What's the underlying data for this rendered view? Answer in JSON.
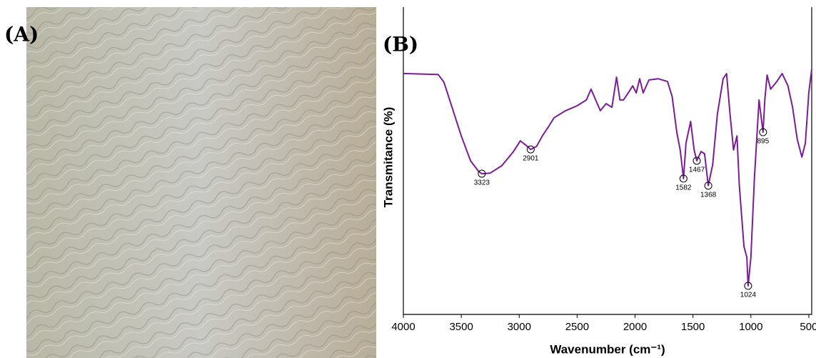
{
  "photo": {
    "label": "(A)"
  },
  "chart_data": {
    "type": "line",
    "panel_label": "(B)",
    "xlabel": "Wavenumber (cm⁻¹)",
    "ylabel": "Transmitance (%)",
    "color": "#7a1d96",
    "xlim": [
      4000,
      475
    ],
    "ylim": [
      0,
      100
    ],
    "xticks": [
      4000,
      3500,
      3000,
      2500,
      2000,
      1500,
      1000,
      500
    ],
    "x": [
      4000,
      3700,
      3650,
      3600,
      3500,
      3420,
      3350,
      3323,
      3250,
      3150,
      3050,
      2990,
      2930,
      2901,
      2850,
      2800,
      2750,
      2700,
      2600,
      2500,
      2420,
      2380,
      2340,
      2300,
      2250,
      2200,
      2160,
      2130,
      2100,
      2050,
      2020,
      1990,
      1960,
      1930,
      1880,
      1800,
      1720,
      1680,
      1640,
      1610,
      1582,
      1560,
      1520,
      1490,
      1467,
      1430,
      1400,
      1368,
      1330,
      1290,
      1240,
      1210,
      1180,
      1150,
      1120,
      1100,
      1060,
      1035,
      1024,
      1000,
      970,
      930,
      895,
      880,
      860,
      830,
      780,
      730,
      680,
      640,
      600,
      560,
      530,
      500,
      475
    ],
    "values": [
      78.4,
      78.1,
      75.6,
      69.8,
      58.1,
      50,
      46.5,
      45.8,
      46,
      48.4,
      53,
      56.5,
      54.7,
      53.7,
      54.7,
      58.1,
      60.9,
      64,
      66.3,
      67.9,
      69.8,
      73.3,
      69.8,
      66.3,
      68.6,
      67.4,
      77.2,
      69.8,
      69.8,
      72.6,
      74.4,
      72.1,
      76.7,
      72.1,
      76.3,
      76.7,
      75.8,
      70.9,
      59.3,
      53.5,
      44.2,
      55.8,
      62.8,
      53.5,
      50,
      53,
      52.3,
      41.9,
      48.8,
      65.1,
      76.7,
      78.4,
      65.1,
      53.5,
      58.1,
      41.9,
      22.1,
      18.6,
      9.3,
      18.6,
      44.2,
      69.8,
      59.3,
      69.8,
      77.9,
      73.3,
      75.6,
      78.4,
      74.4,
      67.4,
      57,
      51.2,
      55.8,
      72.1,
      79.8
    ],
    "annotations": [
      {
        "x": 3323,
        "y": 45.8
      },
      {
        "x": 2901,
        "y": 53.7
      },
      {
        "x": 1582,
        "y": 44.2
      },
      {
        "x": 1467,
        "y": 50
      },
      {
        "x": 1368,
        "y": 41.9
      },
      {
        "x": 1024,
        "y": 9.3
      },
      {
        "x": 895,
        "y": 59.3
      }
    ]
  }
}
